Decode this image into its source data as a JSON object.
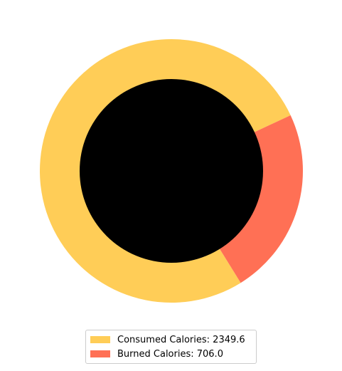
{
  "chart_data": {
    "type": "pie",
    "title": "",
    "donut": true,
    "center_color": "#000000",
    "start_angle_deg": 25,
    "direction": "counterclockwise",
    "legend_position": "bottom-center",
    "series": [
      {
        "name": "Consumed Calories",
        "value": 2349.6,
        "legend_label": "Consumed Calories: 2349.6",
        "color": "#FFCD57"
      },
      {
        "name": "Burned Calories",
        "value": 706.0,
        "legend_label": "Burned Calories: 706.0",
        "color": "#FF7055"
      }
    ]
  }
}
